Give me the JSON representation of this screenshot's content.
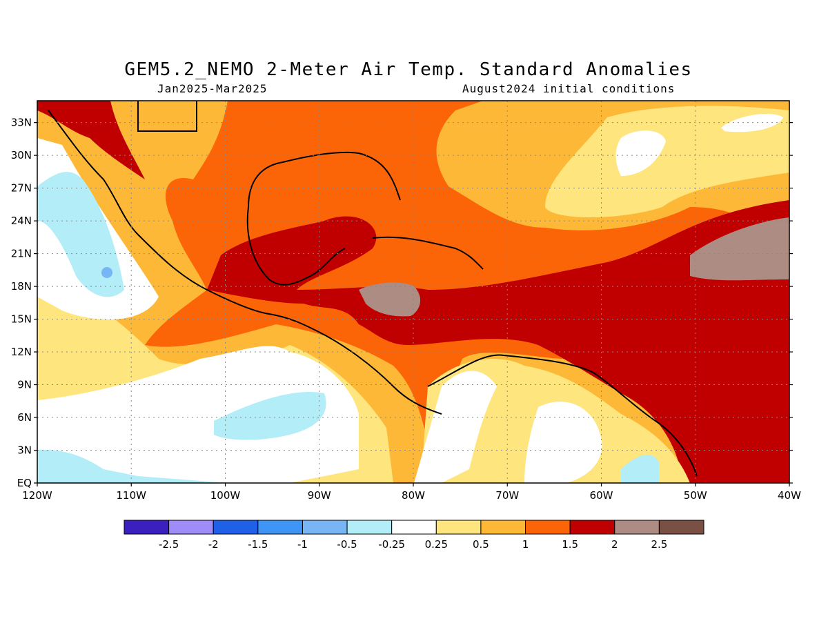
{
  "title": "GEM5.2_NEMO 2-Meter Air Temp. Standard Anomalies",
  "period": "Jan2025-Mar2025",
  "init": "August2024 initial conditions",
  "lat_labels": [
    "33N",
    "30N",
    "27N",
    "24N",
    "21N",
    "18N",
    "15N",
    "12N",
    "9N",
    "6N",
    "3N",
    "EQ"
  ],
  "lat_values": [
    33,
    30,
    27,
    24,
    21,
    18,
    15,
    12,
    9,
    6,
    3,
    0
  ],
  "lon_labels": [
    "120W",
    "110W",
    "100W",
    "90W",
    "80W",
    "70W",
    "60W",
    "50W",
    "40W"
  ],
  "lon_values": [
    -120,
    -110,
    -100,
    -90,
    -80,
    -70,
    -60,
    -50,
    -40
  ],
  "map_extent": {
    "lon": [
      -120,
      -40
    ],
    "lat": [
      0,
      35
    ]
  },
  "colorbar": {
    "colors": [
      "#3b1fbf",
      "#9f8cf8",
      "#1e60e8",
      "#3e95f5",
      "#78b5f5",
      "#b3eef8",
      "#ffffff",
      "#fee57d",
      "#fdb838",
      "#fc6408",
      "#c00000",
      "#ad8c83",
      "#7a5044"
    ],
    "labels": [
      "-2.5",
      "-2",
      "-1.5",
      "-1",
      "-0.5",
      "-0.25",
      "0.25",
      "0.5",
      "1",
      "1.5",
      "2",
      "2.5"
    ]
  },
  "legend_colors": {
    "neutral": "#ffffff",
    "light_cool": "#b3eef8",
    "cool": "#78b5f5",
    "warm_05": "#fee57d",
    "warm_1": "#fdb838",
    "warm_15": "#fc6408",
    "warm_2": "#c00000",
    "warm_25": "#ad8c83"
  }
}
